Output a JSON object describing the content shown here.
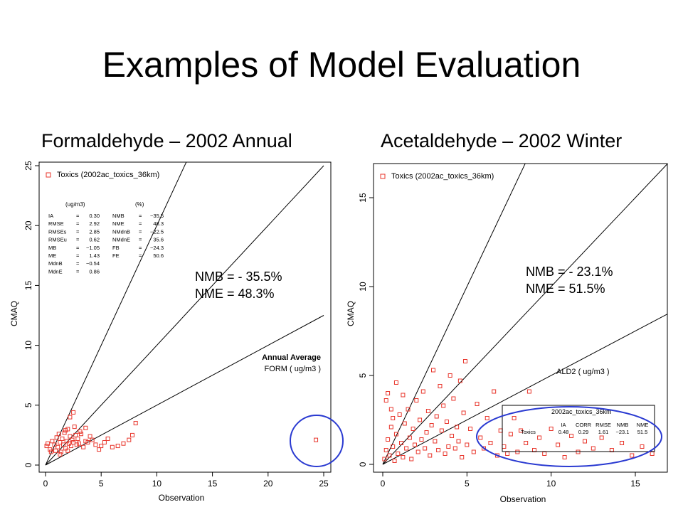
{
  "slide": {
    "title": "Examples of Model Evaluation",
    "left_subtitle": "Formaldehyde  – 2002 Annual",
    "right_subtitle": "Acetaldehyde  – 2002 Winter",
    "left_callout": [
      "NMB = - 35.5%",
      "NME = 48.3%"
    ],
    "right_callout": [
      "NMB = - 23.1%",
      "NME = 51.5%"
    ]
  },
  "colors": {
    "points": "#e8352b",
    "highlight_circle": "#2a3ad1",
    "lines": "#000000"
  },
  "chart_data": [
    {
      "type": "scatter",
      "title": "",
      "xlabel": "Observation",
      "ylabel": "CMAQ",
      "xlim": [
        0,
        25
      ],
      "ylim": [
        0,
        25
      ],
      "xticks": [
        0,
        5,
        10,
        15,
        20,
        25
      ],
      "yticks": [
        0,
        5,
        10,
        15,
        20,
        25
      ],
      "ref_line_slopes": [
        2,
        1,
        0.5
      ],
      "legend": {
        "symbol": "square",
        "label": "Toxics (2002ac_toxics_36km)",
        "position": "top-left"
      },
      "stats_table": {
        "left_header": "(ug/m3)",
        "right_header": "(%)",
        "left_rows": [
          [
            "IA",
            "=",
            "0.30"
          ],
          [
            "RMSE",
            "=",
            "2.92"
          ],
          [
            "RMSEs",
            "=",
            "2.85"
          ],
          [
            "RMSEu",
            "=",
            "0.62"
          ],
          [
            "MB",
            "=",
            "−1.05"
          ],
          [
            "ME",
            "=",
            "1.43"
          ],
          [
            "MdnB",
            "=",
            "−0.54"
          ],
          [
            "MdnE",
            "=",
            "0.86"
          ]
        ],
        "right_rows": [
          [
            "NMB",
            "=",
            "−35.5"
          ],
          [
            "NME",
            "=",
            "48.3"
          ],
          [
            "NMdnB",
            "=",
            "−22.5"
          ],
          [
            "NMdnE",
            "=",
            "35.6"
          ],
          [
            "FB",
            "=",
            "−24.3"
          ],
          [
            "FE",
            "=",
            "50.6"
          ]
        ]
      },
      "annotation": [
        "Annual  Average",
        "FORM  ( ug/m3 )"
      ],
      "highlighted_point": [
        24.3,
        2.1
      ],
      "points": [
        [
          0.1,
          1.6
        ],
        [
          0.2,
          1.8
        ],
        [
          0.4,
          1.3
        ],
        [
          0.6,
          2.0
        ],
        [
          0.8,
          1.7
        ],
        [
          0.9,
          1.2
        ],
        [
          1.0,
          2.3
        ],
        [
          1.1,
          1.5
        ],
        [
          1.2,
          2.6
        ],
        [
          1.3,
          1.9
        ],
        [
          1.4,
          1.1
        ],
        [
          1.5,
          2.2
        ],
        [
          1.6,
          1.7
        ],
        [
          1.7,
          2.7
        ],
        [
          1.8,
          1.4
        ],
        [
          1.9,
          2.0
        ],
        [
          2.0,
          3.0
        ],
        [
          2.1,
          1.8
        ],
        [
          2.2,
          2.4
        ],
        [
          2.3,
          1.6
        ],
        [
          2.4,
          2.1
        ],
        [
          2.5,
          1.9
        ],
        [
          2.6,
          3.2
        ],
        [
          2.7,
          2.5
        ],
        [
          2.8,
          1.7
        ],
        [
          2.9,
          2.2
        ],
        [
          3.0,
          1.8
        ],
        [
          3.2,
          2.6
        ],
        [
          3.4,
          1.5
        ],
        [
          3.6,
          2.0
        ],
        [
          3.8,
          1.9
        ],
        [
          4.0,
          2.4
        ],
        [
          4.2,
          2.1
        ],
        [
          4.5,
          1.7
        ],
        [
          4.8,
          1.3
        ],
        [
          5.0,
          1.6
        ],
        [
          5.3,
          1.9
        ],
        [
          5.6,
          2.2
        ],
        [
          6.0,
          1.5
        ],
        [
          6.5,
          1.6
        ],
        [
          7.0,
          1.8
        ],
        [
          7.5,
          2.1
        ],
        [
          7.8,
          2.5
        ],
        [
          8.1,
          3.5
        ],
        [
          2.5,
          4.4
        ],
        [
          2.2,
          4.0
        ],
        [
          1.8,
          2.9
        ],
        [
          3.1,
          2.8
        ],
        [
          3.6,
          3.1
        ],
        [
          1.3,
          0.9
        ],
        [
          0.5,
          1.1
        ],
        [
          2.0,
          1.2
        ]
      ]
    },
    {
      "type": "scatter",
      "title": "",
      "xlabel": "Observation",
      "ylabel": "CMAQ",
      "xlim": [
        0,
        17
      ],
      "ylim": [
        0,
        17
      ],
      "xticks": [
        0,
        5,
        10,
        15
      ],
      "yticks": [
        0,
        5,
        10,
        15
      ],
      "ref_line_slopes": [
        2,
        1,
        0.5
      ],
      "legend": {
        "symbol": "square",
        "label": "Toxics (2002ac_toxics_36km)",
        "position": "top-left"
      },
      "annotation": [
        "ALD2  ( ug/m3 )"
      ],
      "stats_table": {
        "title": "2002ac_toxics_36km",
        "headers": [
          "IA",
          "CORR",
          "RMSE",
          "NMB",
          "NME"
        ],
        "row_label": "Toxics",
        "row_values": [
          "0.48",
          "0.29",
          "1.61",
          "−23.1",
          "51.5"
        ]
      },
      "points": [
        [
          0.1,
          0.3
        ],
        [
          0.2,
          0.8
        ],
        [
          0.3,
          1.4
        ],
        [
          0.4,
          0.5
        ],
        [
          0.5,
          2.1
        ],
        [
          0.6,
          1.0
        ],
        [
          0.7,
          0.2
        ],
        [
          0.8,
          1.7
        ],
        [
          0.9,
          0.6
        ],
        [
          1.0,
          2.8
        ],
        [
          1.1,
          1.2
        ],
        [
          1.2,
          0.4
        ],
        [
          1.3,
          2.3
        ],
        [
          1.4,
          0.9
        ],
        [
          1.5,
          3.1
        ],
        [
          1.6,
          1.5
        ],
        [
          1.7,
          0.3
        ],
        [
          1.8,
          2.0
        ],
        [
          1.9,
          1.1
        ],
        [
          2.0,
          3.6
        ],
        [
          2.1,
          0.7
        ],
        [
          2.2,
          2.5
        ],
        [
          2.3,
          1.4
        ],
        [
          2.4,
          4.1
        ],
        [
          2.5,
          0.9
        ],
        [
          2.6,
          1.8
        ],
        [
          2.7,
          3.0
        ],
        [
          2.8,
          0.5
        ],
        [
          2.9,
          2.2
        ],
        [
          3.0,
          5.3
        ],
        [
          3.1,
          1.3
        ],
        [
          3.2,
          2.7
        ],
        [
          3.3,
          0.8
        ],
        [
          3.4,
          4.4
        ],
        [
          3.5,
          1.9
        ],
        [
          3.6,
          3.3
        ],
        [
          3.7,
          0.6
        ],
        [
          3.8,
          2.4
        ],
        [
          3.9,
          1.0
        ],
        [
          4.0,
          5.0
        ],
        [
          4.1,
          1.6
        ],
        [
          4.2,
          3.7
        ],
        [
          4.3,
          0.9
        ],
        [
          4.4,
          2.1
        ],
        [
          4.5,
          1.3
        ],
        [
          4.6,
          4.7
        ],
        [
          4.7,
          0.4
        ],
        [
          4.8,
          2.9
        ],
        [
          4.9,
          5.8
        ],
        [
          5.0,
          1.1
        ],
        [
          5.2,
          2.0
        ],
        [
          5.4,
          0.7
        ],
        [
          5.6,
          3.4
        ],
        [
          5.8,
          1.5
        ],
        [
          6.0,
          0.9
        ],
        [
          6.2,
          2.6
        ],
        [
          6.4,
          1.2
        ],
        [
          6.6,
          4.1
        ],
        [
          6.8,
          0.5
        ],
        [
          7.0,
          1.9
        ],
        [
          7.2,
          1.0
        ],
        [
          7.4,
          0.6
        ],
        [
          7.6,
          1.7
        ],
        [
          7.8,
          2.6
        ],
        [
          8.0,
          0.7
        ],
        [
          8.2,
          1.9
        ],
        [
          8.5,
          1.2
        ],
        [
          8.7,
          4.1
        ],
        [
          9.0,
          0.8
        ],
        [
          9.3,
          1.5
        ],
        [
          9.6,
          0.6
        ],
        [
          10.0,
          2.0
        ],
        [
          10.4,
          1.1
        ],
        [
          10.8,
          0.4
        ],
        [
          11.2,
          1.6
        ],
        [
          11.6,
          0.7
        ],
        [
          12.0,
          1.3
        ],
        [
          12.5,
          0.9
        ],
        [
          13.0,
          1.5
        ],
        [
          13.6,
          0.8
        ],
        [
          14.2,
          1.2
        ],
        [
          14.8,
          0.5
        ],
        [
          15.4,
          1.0
        ],
        [
          16.0,
          0.6
        ],
        [
          0.3,
          4.0
        ],
        [
          0.5,
          3.1
        ],
        [
          0.2,
          3.6
        ],
        [
          0.8,
          4.6
        ],
        [
          1.2,
          3.9
        ],
        [
          0.6,
          2.6
        ]
      ]
    }
  ]
}
